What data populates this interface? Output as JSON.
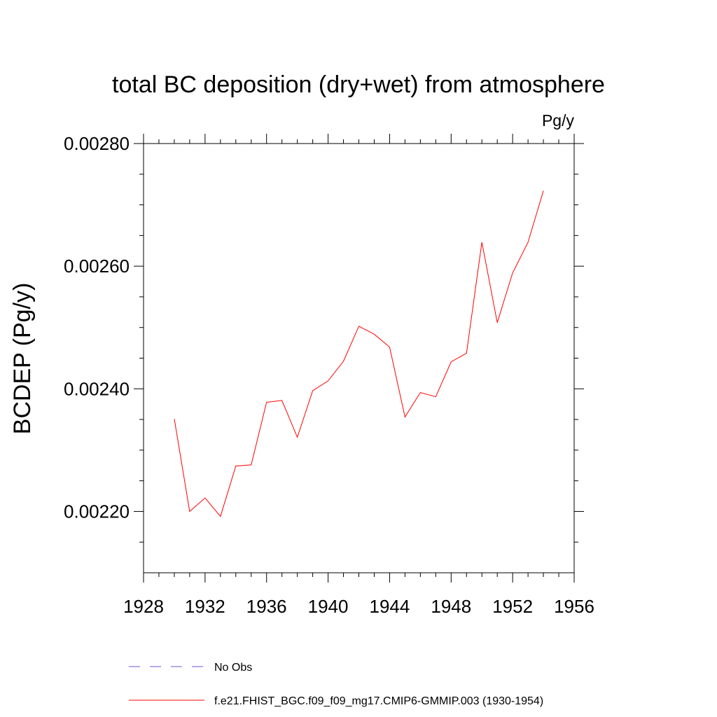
{
  "chart_data": {
    "type": "line",
    "title": "total BC deposition (dry+wet) from atmosphere",
    "units_label": "Pg/y",
    "ylabel": "BCDEP  (Pg/y)",
    "xlabel": "",
    "xlim": [
      1928,
      1956
    ],
    "ylim": [
      0.0021,
      0.0028
    ],
    "x_ticks": [
      "1928",
      "1932",
      "1936",
      "1940",
      "1944",
      "1948",
      "1952",
      "1956"
    ],
    "y_ticks": [
      "0.00220",
      "0.00240",
      "0.00260",
      "0.00280"
    ],
    "grid": false,
    "legend_position": "bottom",
    "series": [
      {
        "name": "f.e21.FHIST_BGC.f09_f09_mg17.CMIP6-GMMIP.003 (1930-1954)",
        "color": "#ff0000",
        "style": "solid",
        "x": [
          1930,
          1931,
          1932,
          1933,
          1934,
          1935,
          1936,
          1937,
          1938,
          1939,
          1940,
          1941,
          1942,
          1943,
          1944,
          1945,
          1946,
          1947,
          1948,
          1949,
          1950,
          1951,
          1952,
          1953,
          1954
        ],
        "values": [
          0.002351,
          0.0022,
          0.002222,
          0.002192,
          0.002274,
          0.002276,
          0.002378,
          0.002381,
          0.002321,
          0.002397,
          0.002413,
          0.002445,
          0.002502,
          0.002489,
          0.002468,
          0.002354,
          0.002394,
          0.002387,
          0.002444,
          0.002458,
          0.002639,
          0.002508,
          0.002589,
          0.002639,
          0.002723
        ]
      },
      {
        "name": "No Obs",
        "color": "#6a5acd",
        "style": "dashed",
        "x": [],
        "values": []
      }
    ]
  }
}
